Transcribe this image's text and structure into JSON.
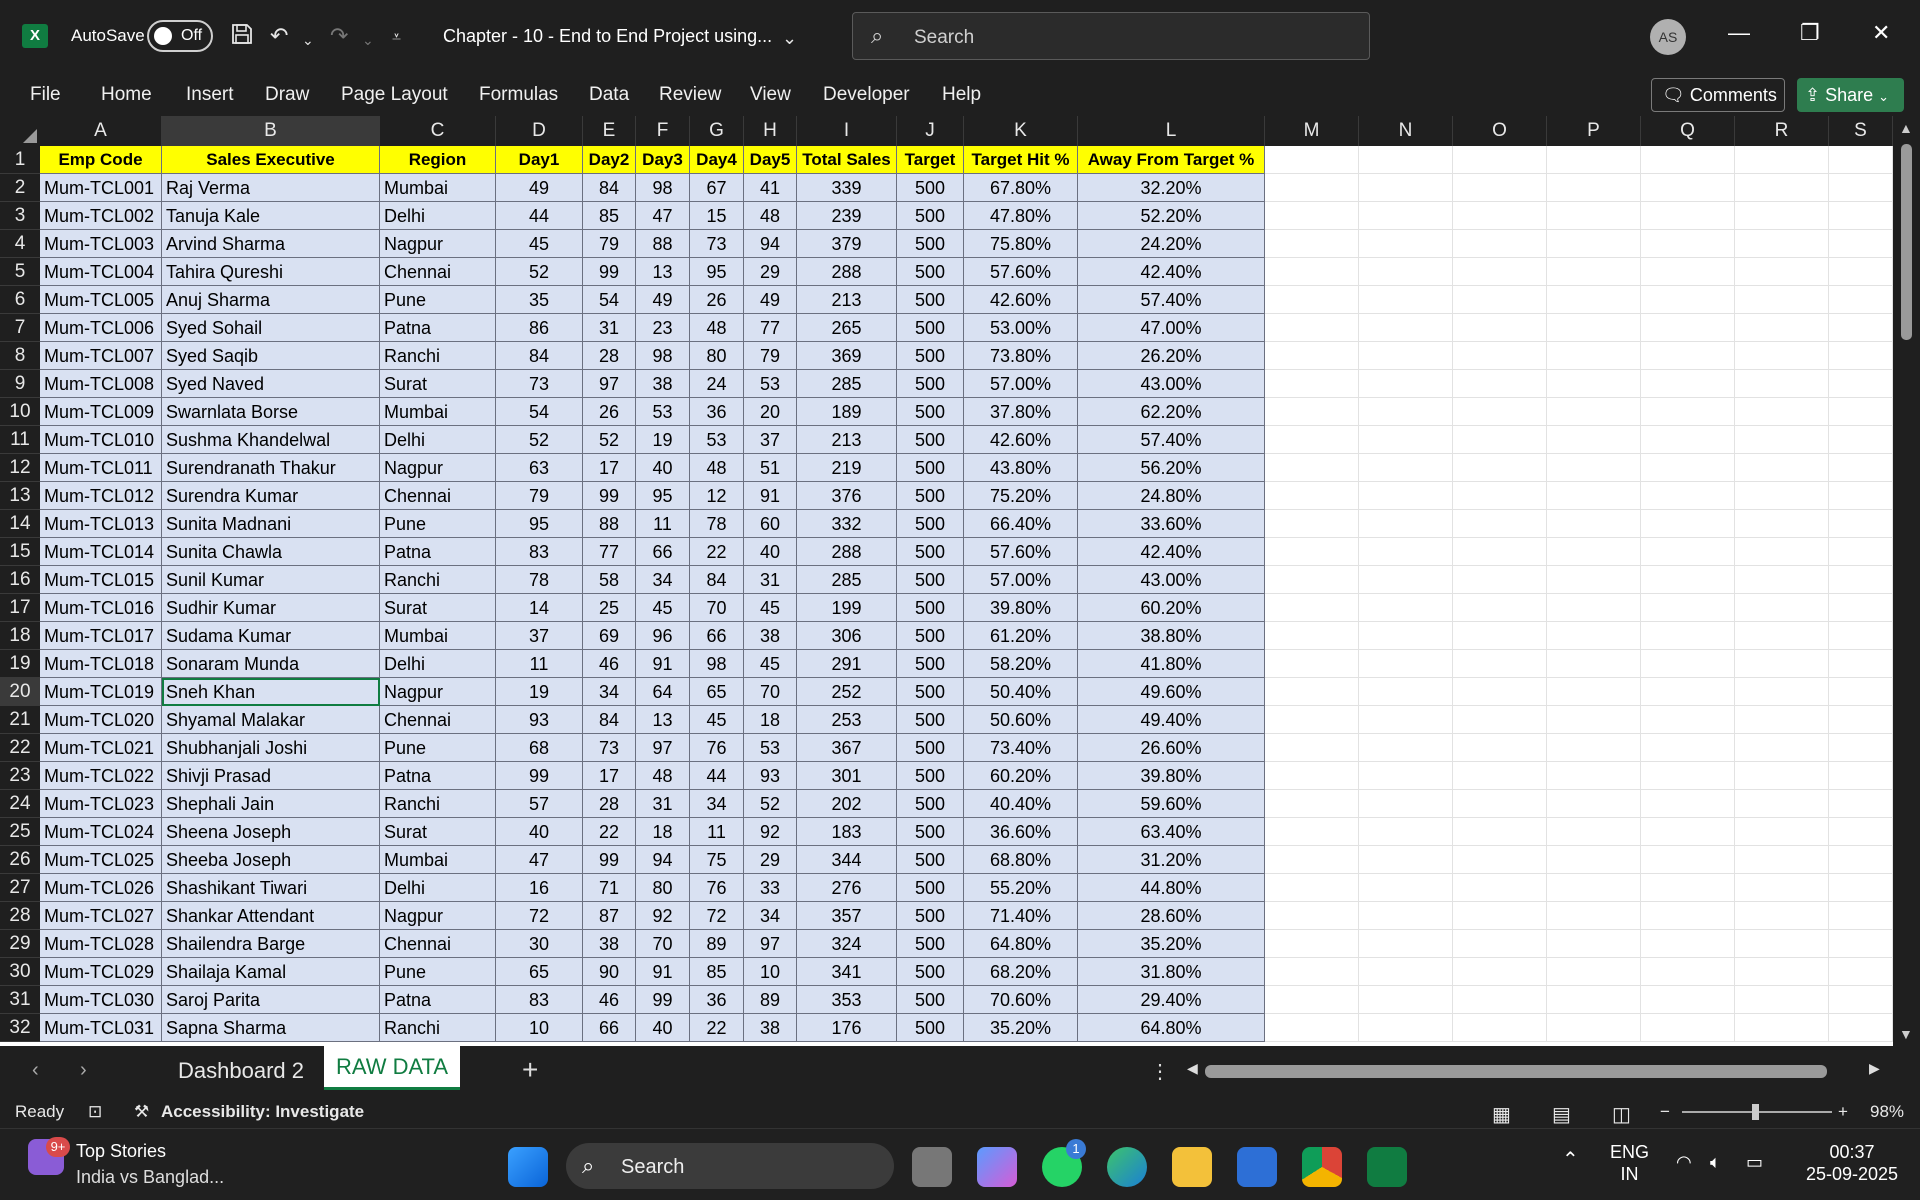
{
  "titlebar": {
    "autosave_label": "AutoSave",
    "autosave_state": "Off",
    "doc_title": "Chapter - 10 - End to End Project using...",
    "search_placeholder": "Search",
    "avatar_initials": "AS",
    "icons": [
      "excel-logo-icon",
      "save-icon",
      "undo-icon",
      "redo-icon",
      "customize-qat-icon",
      "chevron-down-icon",
      "minimize-icon",
      "restore-icon",
      "close-icon"
    ]
  },
  "ribbon": {
    "tabs": [
      "File",
      "Home",
      "Insert",
      "Draw",
      "Page Layout",
      "Formulas",
      "Data",
      "Review",
      "View",
      "Developer",
      "Help"
    ],
    "comments_label": "Comments",
    "share_label": "Share"
  },
  "sheet": {
    "columns": [
      "A",
      "B",
      "C",
      "D",
      "E",
      "F",
      "G",
      "H",
      "I",
      "J",
      "K",
      "L",
      "M",
      "N",
      "O",
      "P",
      "Q",
      "R",
      "S"
    ],
    "selected_column": "B",
    "selected_row": "20",
    "header": [
      "Emp Code",
      "Sales Executive",
      "Region",
      "Day1",
      "Day2",
      "Day3",
      "Day4",
      "Day5",
      "Total Sales",
      "Target",
      "Target Hit %",
      "Away From Target %"
    ],
    "rows": [
      [
        "Mum-TCL001",
        "Raj Verma",
        "Mumbai",
        "49",
        "84",
        "98",
        "67",
        "41",
        "339",
        "500",
        "67.80%",
        "32.20%"
      ],
      [
        "Mum-TCL002",
        "Tanuja Kale",
        "Delhi",
        "44",
        "85",
        "47",
        "15",
        "48",
        "239",
        "500",
        "47.80%",
        "52.20%"
      ],
      [
        "Mum-TCL003",
        "Arvind Sharma",
        "Nagpur",
        "45",
        "79",
        "88",
        "73",
        "94",
        "379",
        "500",
        "75.80%",
        "24.20%"
      ],
      [
        "Mum-TCL004",
        "Tahira Qureshi",
        "Chennai",
        "52",
        "99",
        "13",
        "95",
        "29",
        "288",
        "500",
        "57.60%",
        "42.40%"
      ],
      [
        "Mum-TCL005",
        "Anuj Sharma",
        "Pune",
        "35",
        "54",
        "49",
        "26",
        "49",
        "213",
        "500",
        "42.60%",
        "57.40%"
      ],
      [
        "Mum-TCL006",
        "Syed Sohail",
        "Patna",
        "86",
        "31",
        "23",
        "48",
        "77",
        "265",
        "500",
        "53.00%",
        "47.00%"
      ],
      [
        "Mum-TCL007",
        "Syed Saqib",
        "Ranchi",
        "84",
        "28",
        "98",
        "80",
        "79",
        "369",
        "500",
        "73.80%",
        "26.20%"
      ],
      [
        "Mum-TCL008",
        "Syed Naved",
        "Surat",
        "73",
        "97",
        "38",
        "24",
        "53",
        "285",
        "500",
        "57.00%",
        "43.00%"
      ],
      [
        "Mum-TCL009",
        "Swarnlata Borse",
        "Mumbai",
        "54",
        "26",
        "53",
        "36",
        "20",
        "189",
        "500",
        "37.80%",
        "62.20%"
      ],
      [
        "Mum-TCL010",
        "Sushma Khandelwal",
        "Delhi",
        "52",
        "52",
        "19",
        "53",
        "37",
        "213",
        "500",
        "42.60%",
        "57.40%"
      ],
      [
        "Mum-TCL011",
        "Surendranath Thakur",
        "Nagpur",
        "63",
        "17",
        "40",
        "48",
        "51",
        "219",
        "500",
        "43.80%",
        "56.20%"
      ],
      [
        "Mum-TCL012",
        "Surendra Kumar",
        "Chennai",
        "79",
        "99",
        "95",
        "12",
        "91",
        "376",
        "500",
        "75.20%",
        "24.80%"
      ],
      [
        "Mum-TCL013",
        "Sunita Madnani",
        "Pune",
        "95",
        "88",
        "11",
        "78",
        "60",
        "332",
        "500",
        "66.40%",
        "33.60%"
      ],
      [
        "Mum-TCL014",
        "Sunita Chawla",
        "Patna",
        "83",
        "77",
        "66",
        "22",
        "40",
        "288",
        "500",
        "57.60%",
        "42.40%"
      ],
      [
        "Mum-TCL015",
        "Sunil Kumar",
        "Ranchi",
        "78",
        "58",
        "34",
        "84",
        "31",
        "285",
        "500",
        "57.00%",
        "43.00%"
      ],
      [
        "Mum-TCL016",
        "Sudhir Kumar",
        "Surat",
        "14",
        "25",
        "45",
        "70",
        "45",
        "199",
        "500",
        "39.80%",
        "60.20%"
      ],
      [
        "Mum-TCL017",
        "Sudama Kumar",
        "Mumbai",
        "37",
        "69",
        "96",
        "66",
        "38",
        "306",
        "500",
        "61.20%",
        "38.80%"
      ],
      [
        "Mum-TCL018",
        "Sonaram Munda",
        "Delhi",
        "11",
        "46",
        "91",
        "98",
        "45",
        "291",
        "500",
        "58.20%",
        "41.80%"
      ],
      [
        "Mum-TCL019",
        "Sneh Khan",
        "Nagpur",
        "19",
        "34",
        "64",
        "65",
        "70",
        "252",
        "500",
        "50.40%",
        "49.60%"
      ],
      [
        "Mum-TCL020",
        "Shyamal Malakar",
        "Chennai",
        "93",
        "84",
        "13",
        "45",
        "18",
        "253",
        "500",
        "50.60%",
        "49.40%"
      ],
      [
        "Mum-TCL021",
        "Shubhanjali Joshi",
        "Pune",
        "68",
        "73",
        "97",
        "76",
        "53",
        "367",
        "500",
        "73.40%",
        "26.60%"
      ],
      [
        "Mum-TCL022",
        "Shivji Prasad",
        "Patna",
        "99",
        "17",
        "48",
        "44",
        "93",
        "301",
        "500",
        "60.20%",
        "39.80%"
      ],
      [
        "Mum-TCL023",
        "Shephali Jain",
        "Ranchi",
        "57",
        "28",
        "31",
        "34",
        "52",
        "202",
        "500",
        "40.40%",
        "59.60%"
      ],
      [
        "Mum-TCL024",
        "Sheena Joseph",
        "Surat",
        "40",
        "22",
        "18",
        "11",
        "92",
        "183",
        "500",
        "36.60%",
        "63.40%"
      ],
      [
        "Mum-TCL025",
        "Sheeba Joseph",
        "Mumbai",
        "47",
        "99",
        "94",
        "75",
        "29",
        "344",
        "500",
        "68.80%",
        "31.20%"
      ],
      [
        "Mum-TCL026",
        "Shashikant Tiwari",
        "Delhi",
        "16",
        "71",
        "80",
        "76",
        "33",
        "276",
        "500",
        "55.20%",
        "44.80%"
      ],
      [
        "Mum-TCL027",
        "Shankar Attendant",
        "Nagpur",
        "72",
        "87",
        "92",
        "72",
        "34",
        "357",
        "500",
        "71.40%",
        "28.60%"
      ],
      [
        "Mum-TCL028",
        "Shailendra Barge",
        "Chennai",
        "30",
        "38",
        "70",
        "89",
        "97",
        "324",
        "500",
        "64.80%",
        "35.20%"
      ],
      [
        "Mum-TCL029",
        "Shailaja Kamal",
        "Pune",
        "65",
        "90",
        "91",
        "85",
        "10",
        "341",
        "500",
        "68.20%",
        "31.80%"
      ],
      [
        "Mum-TCL030",
        "Saroj Parita",
        "Patna",
        "83",
        "46",
        "99",
        "36",
        "89",
        "353",
        "500",
        "70.60%",
        "29.40%"
      ],
      [
        "Mum-TCL031",
        "Sapna Sharma",
        "Ranchi",
        "10",
        "66",
        "40",
        "22",
        "38",
        "176",
        "500",
        "35.20%",
        "64.80%"
      ]
    ]
  },
  "sheet_tabs": {
    "tabs": [
      "Dashboard 2",
      "RAW DATA"
    ],
    "active": "RAW DATA"
  },
  "statusbar": {
    "ready": "Ready",
    "accessibility": "Accessibility: Investigate",
    "zoom": "98%"
  },
  "taskbar": {
    "news_title": "Top Stories",
    "news_sub": "India vs Banglad...",
    "news_badge": "9+",
    "search_placeholder": "Search",
    "whatsapp_badge": "1",
    "lang_line1": "ENG",
    "lang_line2": "IN",
    "time": "00:37",
    "date": "25-09-2025"
  },
  "colors": {
    "header_fill": "#ffff00",
    "data_fill": "#d9e1f2",
    "excel_green": "#107c41",
    "chrome_dark": "#1f1f1f"
  }
}
